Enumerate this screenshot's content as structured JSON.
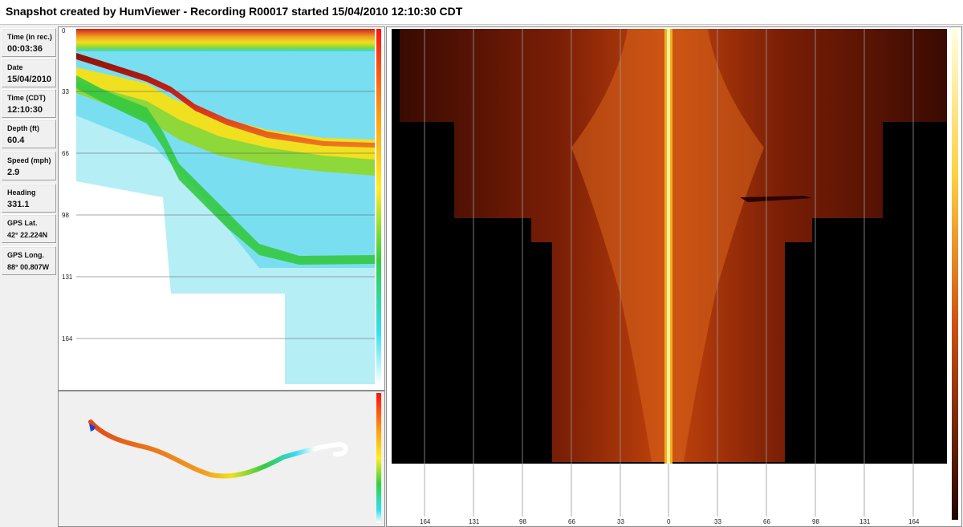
{
  "title": "Snapshot created by HumViewer - Recording R00017 started 15/04/2010 12:10:30 CDT",
  "info": [
    {
      "label": "Time (in rec.)",
      "value": "00:03:36"
    },
    {
      "label": "Date",
      "value": "15/04/2010"
    },
    {
      "label": "Time (CDT)",
      "value": "12:10:30"
    },
    {
      "label": "Depth (ft)",
      "value": "60.4"
    },
    {
      "label": "Speed (mph)",
      "value": "2.9"
    },
    {
      "label": "Heading",
      "value": "331.1"
    },
    {
      "label": "GPS Lat.",
      "value": "42° 22.224N"
    },
    {
      "label": "GPS Long.",
      "value": "88° 00.807W"
    }
  ],
  "downscan": {
    "depth_ticks": [
      "0",
      "33",
      "66",
      "98",
      "131",
      "164"
    ]
  },
  "sidescan": {
    "range_ticks": [
      "164",
      "131",
      "98",
      "66",
      "33",
      "0",
      "33",
      "66",
      "98",
      "131",
      "164"
    ]
  },
  "colors": {
    "sonar_red": "#d2231a",
    "sonar_yellow": "#f0e020",
    "sonar_green": "#34c940",
    "sonar_cyan": "#35d9ee",
    "sidescan_dark": "#2a0500",
    "sidescan_orange": "#c0420c",
    "sidescan_center": "#fff09a",
    "track_blue": "#1f3fd8"
  },
  "icons": {
    "boat_marker": "boat-position-arrow-icon"
  }
}
